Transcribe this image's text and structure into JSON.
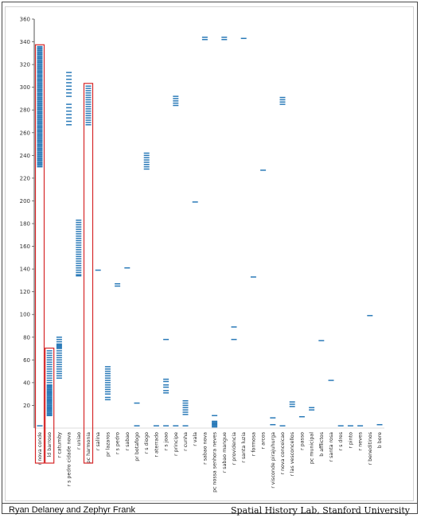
{
  "footer": {
    "authors": "Ryan Delaney and Zephyr Frank",
    "lab": "Spatial History Lab, Stanford University"
  },
  "colors": {
    "mark": "#2a7ab8",
    "highlight": "#d62728",
    "axis": "#555555"
  },
  "chart_data": {
    "type": "scatter",
    "title": "",
    "xlabel": "",
    "ylabel": "",
    "ylim": [
      0,
      360
    ],
    "yticks": [
      20,
      40,
      60,
      80,
      100,
      120,
      140,
      160,
      180,
      200,
      220,
      240,
      260,
      280,
      300,
      320,
      340,
      360
    ],
    "grid": false,
    "categories": [
      "r nova conde",
      "ld barroso",
      "r catumby",
      "r s pedro cidade nova",
      "r uniao",
      "pc harmonia",
      "r salina",
      "pr lazaros",
      "r s pedro",
      "r sabao",
      "pr botafogo",
      "r s diogo",
      "r aterrado",
      "r s joao",
      "r principe",
      "r cunha",
      "r vala",
      "r sabao nova",
      "pc nossa senhora neves",
      "r sabao mangue",
      "r providencia",
      "r santa luzia",
      "r formosa",
      "r arcos",
      "r visconde pirajuhurga",
      "r nova conceicao",
      "r las vesconcellos",
      "r passo",
      "pc municipal",
      "b afflictos",
      "r santa rosa",
      "r s dres",
      "r pinto",
      "r neves",
      "r beneditinos",
      "b bore"
    ],
    "highlighted": [
      "r nova conde",
      "ld barroso",
      "pc harmonia"
    ],
    "points": [
      [],
      [
        11,
        12,
        13,
        14,
        15,
        16,
        17,
        18,
        19,
        20,
        21,
        22,
        23,
        24,
        25,
        26,
        27,
        28,
        29,
        30,
        31,
        32,
        33,
        34,
        35,
        36,
        37,
        38,
        40,
        42,
        44,
        46,
        48,
        50,
        52,
        54,
        56,
        58,
        60,
        62,
        64,
        66,
        68
      ],
      [
        44,
        46,
        48,
        50,
        52,
        54,
        56,
        58,
        60,
        62,
        64,
        66,
        68,
        70,
        71,
        72,
        73,
        74,
        76,
        78,
        80
      ],
      [
        267,
        270,
        273,
        276,
        279,
        282,
        285,
        292,
        295,
        298,
        301,
        304,
        307,
        310,
        313
      ],
      [
        134,
        135,
        137,
        139,
        141,
        143,
        145,
        147,
        149,
        151,
        153,
        155,
        157,
        159,
        161,
        163,
        165,
        167,
        169,
        171,
        173,
        175,
        177,
        179,
        181,
        183
      ],
      [
        267,
        269,
        271,
        273,
        275,
        277,
        279,
        281,
        283,
        285,
        287,
        289,
        291,
        293,
        295,
        297,
        299,
        301
      ],
      [
        139
      ],
      [
        25,
        27,
        30,
        32,
        34,
        36,
        38,
        40,
        42,
        44,
        46,
        48,
        50,
        52,
        54
      ],
      [
        125,
        127
      ],
      [
        141
      ],
      [
        2,
        22
      ],
      [
        228,
        230,
        232,
        234,
        236,
        238,
        240,
        242
      ],
      [
        2
      ],
      [
        2,
        31,
        33,
        36,
        38,
        41,
        43,
        78
      ],
      [
        2,
        284,
        286,
        288,
        290,
        292
      ],
      [
        2,
        12,
        14,
        16,
        18,
        20,
        22,
        24
      ],
      [
        199
      ],
      [
        342,
        344
      ],
      [
        1,
        2,
        3,
        4,
        5,
        6,
        11
      ],
      [
        342,
        344
      ],
      [
        78,
        89
      ],
      [
        343
      ],
      [
        133
      ],
      [
        227
      ],
      [
        3,
        9
      ],
      [
        2,
        285,
        287,
        289,
        291
      ],
      [
        19,
        21,
        23
      ],
      [
        10
      ],
      [
        16,
        18
      ],
      [
        77
      ],
      [
        42
      ],
      [
        2
      ],
      [
        2
      ],
      [
        2
      ],
      [
        99
      ],
      [
        3
      ]
    ],
    "nova_conde_ranges": [
      [
        230,
        336
      ],
      [
        2,
        2
      ]
    ]
  }
}
